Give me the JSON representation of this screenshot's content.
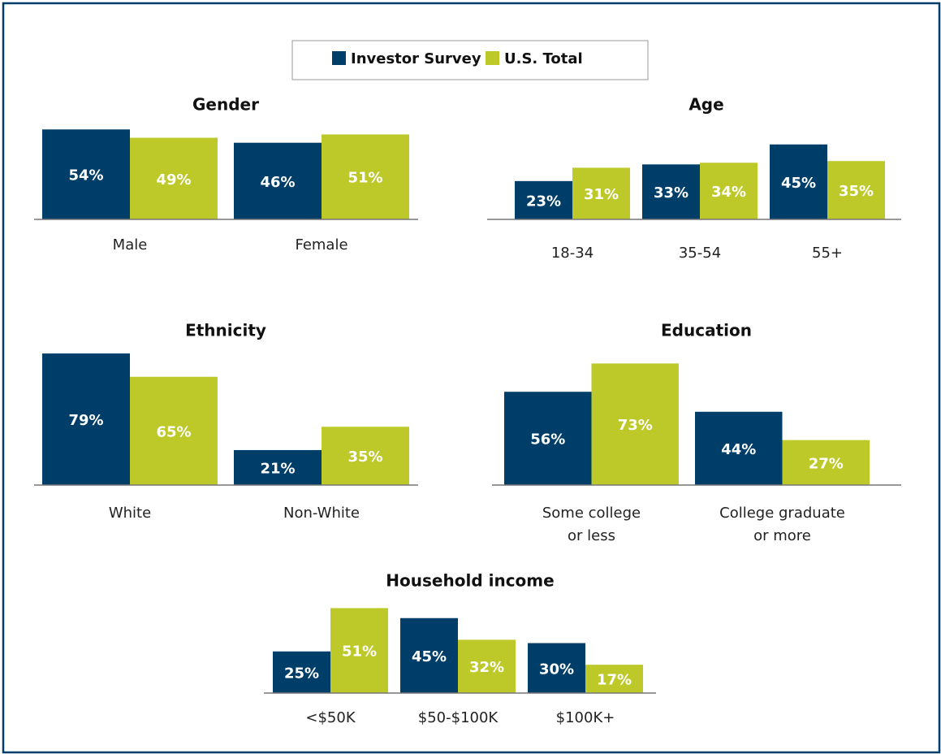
{
  "chart_data": [
    {
      "type": "bar",
      "title": "Gender",
      "categories": [
        "Male",
        "Female"
      ],
      "series": [
        {
          "name": "Investor Survey",
          "color": "#003e6a",
          "values": [
            54,
            46
          ],
          "value_labels": [
            "54%",
            "46%"
          ]
        },
        {
          "name": "U.S. Total",
          "color": "#bdc928",
          "values": [
            49,
            51
          ],
          "value_labels": [
            "49%",
            "51%"
          ]
        }
      ]
    },
    {
      "type": "bar",
      "title": "Age",
      "categories": [
        "18-34",
        "35-54",
        "55+"
      ],
      "series": [
        {
          "name": "Investor Survey",
          "color": "#003e6a",
          "values": [
            23,
            33,
            45
          ],
          "value_labels": [
            "23%",
            "33%",
            "45%"
          ]
        },
        {
          "name": "U.S. Total",
          "color": "#bdc928",
          "values": [
            31,
            34,
            35
          ],
          "value_labels": [
            "31%",
            "34%",
            "35%"
          ]
        }
      ]
    },
    {
      "type": "bar",
      "title": "Ethnicity",
      "categories": [
        "White",
        "Non-White"
      ],
      "series": [
        {
          "name": "Investor Survey",
          "color": "#003e6a",
          "values": [
            79,
            21
          ],
          "value_labels": [
            "79%",
            "21%"
          ]
        },
        {
          "name": "U.S. Total",
          "color": "#bdc928",
          "values": [
            65,
            35
          ],
          "value_labels": [
            "65%",
            "35%"
          ]
        }
      ]
    },
    {
      "type": "bar",
      "title": "Education",
      "categories": [
        "Some college\nor less",
        "College graduate\nor more"
      ],
      "series": [
        {
          "name": "Investor Survey",
          "color": "#003e6a",
          "values": [
            56,
            44
          ],
          "value_labels": [
            "56%",
            "44%"
          ]
        },
        {
          "name": "U.S. Total",
          "color": "#bdc928",
          "values": [
            73,
            27
          ],
          "value_labels": [
            "73%",
            "27%"
          ]
        }
      ]
    },
    {
      "type": "bar",
      "title": "Household income",
      "categories": [
        "<$50K",
        "$50-$100K",
        "$100K+"
      ],
      "series": [
        {
          "name": "Investor Survey",
          "color": "#003e6a",
          "values": [
            25,
            45,
            30
          ],
          "value_labels": [
            "25%",
            "45%",
            "30%"
          ]
        },
        {
          "name": "U.S. Total",
          "color": "#bdc928",
          "values": [
            51,
            32,
            17
          ],
          "value_labels": [
            "51%",
            "32%",
            "17%"
          ]
        }
      ]
    }
  ]
}
